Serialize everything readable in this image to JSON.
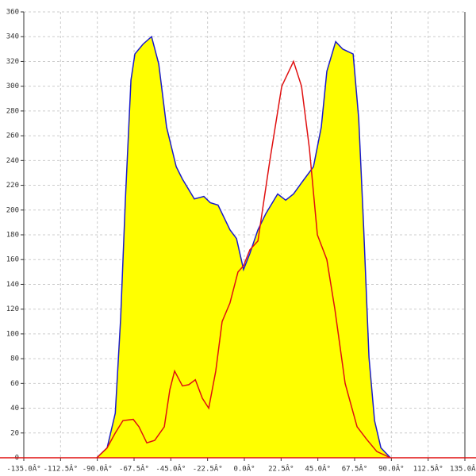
{
  "chart_data": {
    "type": "area-line",
    "series": [
      {
        "kind": "area",
        "color": "#1a1acc",
        "fill": "#ffff00",
        "x": [
          -90.3,
          -84,
          -79,
          -75.7,
          -72.8,
          -69.4,
          -67,
          -62,
          -56.8,
          -52.4,
          -47.6,
          -41.7,
          -37.9,
          -30.6,
          -24.8,
          -20.9,
          -16.1,
          -8.8,
          -4.8,
          -0.5,
          3.4,
          8.3,
          13.1,
          20.4,
          25.3,
          30.1,
          35,
          42.3,
          47.1,
          50.5,
          55.9,
          60.2,
          66.6,
          70,
          72.9,
          76.3,
          79.7,
          83.6,
          89.4
        ],
        "values": [
          0,
          8,
          36,
          113,
          209,
          305,
          326,
          334,
          340,
          318,
          267,
          235,
          225,
          209,
          211,
          206,
          204,
          184,
          177,
          152,
          165,
          184,
          197,
          213,
          208,
          213,
          222,
          235,
          267,
          312,
          336,
          330,
          326,
          274,
          190,
          81,
          30,
          8,
          0
        ]
      },
      {
        "kind": "line",
        "color": "#e01010",
        "x": [
          -90.3,
          -84,
          -79,
          -74.3,
          -68,
          -64.5,
          -59.7,
          -54.9,
          -49,
          -45.6,
          -42.7,
          -37.9,
          -34,
          -30,
          -25.7,
          -21.8,
          -17.5,
          -13.6,
          -8.8,
          -3.9,
          -0.5,
          3.4,
          8.3,
          15.6,
          22.9,
          30.1,
          35,
          39.8,
          44.7,
          50.5,
          55.4,
          61.7,
          69,
          74.8,
          81.1,
          89.4
        ],
        "values": [
          0,
          8,
          20,
          30,
          31,
          25,
          12,
          14,
          25,
          55,
          70,
          58,
          59,
          63,
          48,
          40,
          70,
          110,
          125,
          150,
          155,
          168,
          175,
          240,
          300,
          320,
          300,
          250,
          180,
          160,
          120,
          60,
          25,
          15,
          5,
          0
        ]
      }
    ],
    "xlim": [
      -135,
      135
    ],
    "xticks": [
      {
        "value": -135,
        "label": "-135.0Â°"
      },
      {
        "value": -112.5,
        "label": "-112.5Â°"
      },
      {
        "value": -90,
        "label": "-90.0Â°"
      },
      {
        "value": -67.5,
        "label": "-67.5Â°"
      },
      {
        "value": -45,
        "label": "-45.0Â°"
      },
      {
        "value": -22.5,
        "label": "-22.5Â°"
      },
      {
        "value": 0,
        "label": "0.0Â°"
      },
      {
        "value": 22.5,
        "label": "22.5Â°"
      },
      {
        "value": 45,
        "label": "45.0Â°"
      },
      {
        "value": 67.5,
        "label": "67.5Â°"
      },
      {
        "value": 90,
        "label": "90.0Â°"
      },
      {
        "value": 112.5,
        "label": "112.5Â°"
      },
      {
        "value": 135,
        "label": "135.0Â°"
      }
    ],
    "ylim": [
      0,
      360
    ],
    "yticks": [
      0,
      20,
      40,
      60,
      80,
      100,
      120,
      140,
      160,
      180,
      200,
      220,
      240,
      260,
      280,
      300,
      320,
      340,
      360
    ],
    "grid": true
  }
}
